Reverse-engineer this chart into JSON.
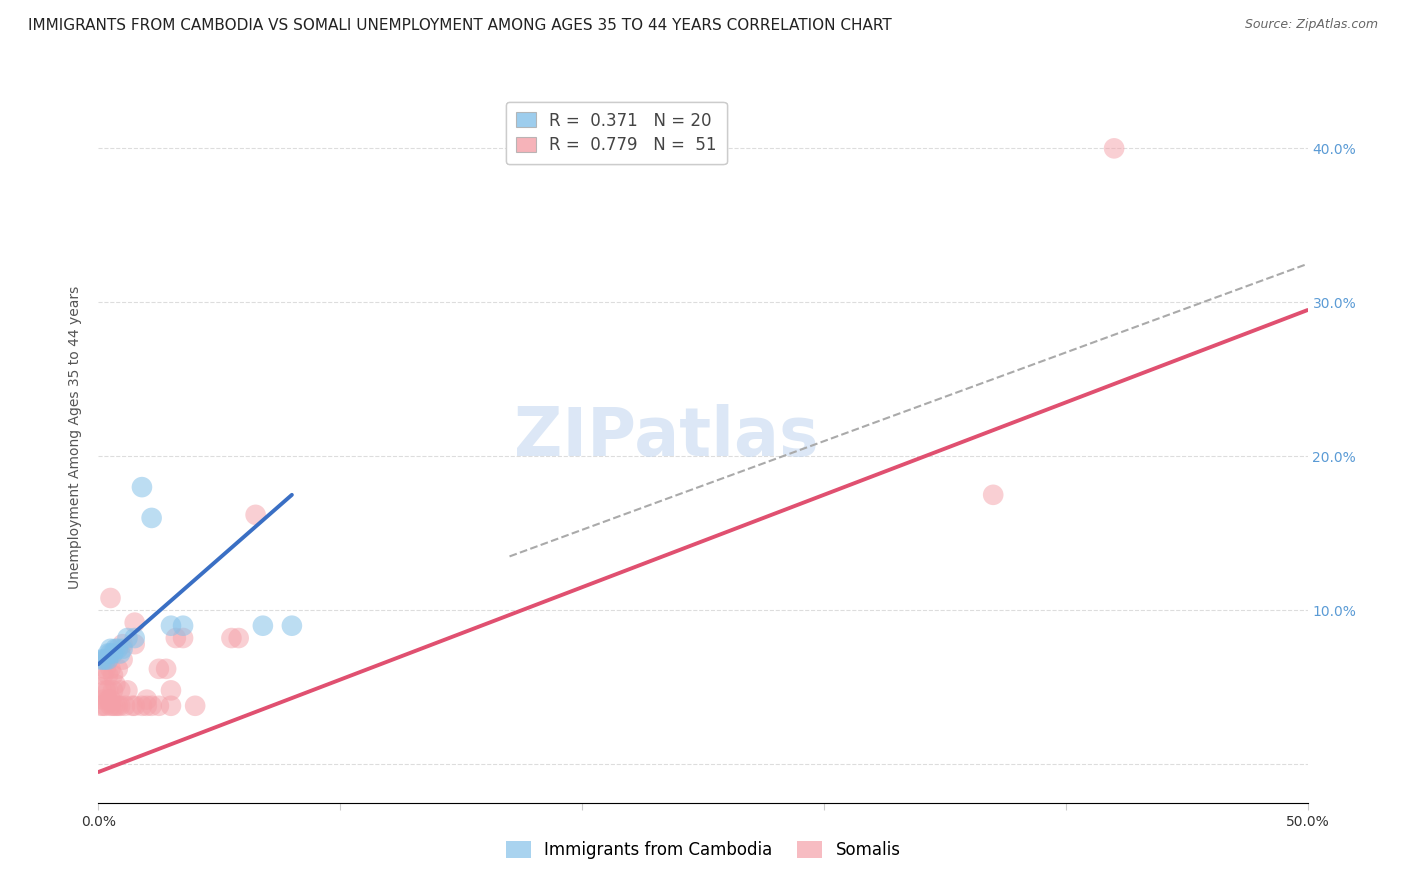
{
  "title": "IMMIGRANTS FROM CAMBODIA VS SOMALI UNEMPLOYMENT AMONG AGES 35 TO 44 YEARS CORRELATION CHART",
  "source": "Source: ZipAtlas.com",
  "ylabel": "Unemployment Among Ages 35 to 44 years",
  "xlim": [
    0.0,
    0.5
  ],
  "ylim": [
    -0.025,
    0.45
  ],
  "cambodia_color": "#85C1E9",
  "somali_color": "#F4A0A8",
  "cambodia_line_color": "#3A6FC4",
  "somali_line_color": "#E05070",
  "dashed_line_color": "#AAAAAA",
  "cambodia_points": [
    [
      0.001,
      0.068
    ],
    [
      0.002,
      0.068
    ],
    [
      0.003,
      0.068
    ],
    [
      0.004,
      0.068
    ],
    [
      0.004,
      0.072
    ],
    [
      0.005,
      0.072
    ],
    [
      0.005,
      0.075
    ],
    [
      0.006,
      0.072
    ],
    [
      0.007,
      0.075
    ],
    [
      0.008,
      0.075
    ],
    [
      0.009,
      0.072
    ],
    [
      0.01,
      0.075
    ],
    [
      0.012,
      0.082
    ],
    [
      0.015,
      0.082
    ],
    [
      0.018,
      0.18
    ],
    [
      0.022,
      0.16
    ],
    [
      0.03,
      0.09
    ],
    [
      0.035,
      0.09
    ],
    [
      0.068,
      0.09
    ],
    [
      0.08,
      0.09
    ]
  ],
  "somali_points": [
    [
      0.001,
      0.038
    ],
    [
      0.001,
      0.05
    ],
    [
      0.002,
      0.038
    ],
    [
      0.002,
      0.042
    ],
    [
      0.002,
      0.058
    ],
    [
      0.003,
      0.038
    ],
    [
      0.003,
      0.048
    ],
    [
      0.003,
      0.062
    ],
    [
      0.003,
      0.068
    ],
    [
      0.004,
      0.042
    ],
    [
      0.004,
      0.048
    ],
    [
      0.004,
      0.058
    ],
    [
      0.004,
      0.068
    ],
    [
      0.005,
      0.038
    ],
    [
      0.005,
      0.042
    ],
    [
      0.005,
      0.062
    ],
    [
      0.005,
      0.108
    ],
    [
      0.006,
      0.038
    ],
    [
      0.006,
      0.048
    ],
    [
      0.006,
      0.058
    ],
    [
      0.007,
      0.038
    ],
    [
      0.007,
      0.052
    ],
    [
      0.008,
      0.038
    ],
    [
      0.008,
      0.062
    ],
    [
      0.009,
      0.038
    ],
    [
      0.009,
      0.048
    ],
    [
      0.01,
      0.068
    ],
    [
      0.01,
      0.078
    ],
    [
      0.011,
      0.038
    ],
    [
      0.012,
      0.048
    ],
    [
      0.014,
      0.038
    ],
    [
      0.015,
      0.038
    ],
    [
      0.015,
      0.078
    ],
    [
      0.015,
      0.092
    ],
    [
      0.018,
      0.038
    ],
    [
      0.02,
      0.038
    ],
    [
      0.02,
      0.042
    ],
    [
      0.022,
      0.038
    ],
    [
      0.025,
      0.038
    ],
    [
      0.025,
      0.062
    ],
    [
      0.028,
      0.062
    ],
    [
      0.03,
      0.038
    ],
    [
      0.03,
      0.048
    ],
    [
      0.032,
      0.082
    ],
    [
      0.035,
      0.082
    ],
    [
      0.04,
      0.038
    ],
    [
      0.055,
      0.082
    ],
    [
      0.058,
      0.082
    ],
    [
      0.065,
      0.162
    ],
    [
      0.37,
      0.175
    ],
    [
      0.42,
      0.4
    ]
  ],
  "grid_color": "#DDDDDD",
  "background_color": "#FFFFFF",
  "title_fontsize": 11,
  "source_fontsize": 9,
  "axis_label_fontsize": 10,
  "tick_fontsize": 10,
  "legend_fontsize": 12,
  "watermark": "ZIPatlas",
  "cambodia_label_r": "R = ",
  "cambodia_label_r_val": "0.371",
  "cambodia_label_n": "N = ",
  "cambodia_label_n_val": "20",
  "somali_label_r": "R = ",
  "somali_label_r_val": "0.779",
  "somali_label_n": "N = ",
  "somali_label_n_val": "51",
  "bottom_label_cambodia": "Immigrants from Cambodia",
  "bottom_label_somali": "Somalis",
  "blue_line_x": [
    0.0,
    0.08
  ],
  "blue_line_y": [
    0.065,
    0.175
  ],
  "pink_line_x": [
    0.0,
    0.5
  ],
  "pink_line_y": [
    -0.005,
    0.295
  ],
  "dash_line_x": [
    0.17,
    0.5
  ],
  "dash_line_y": [
    0.135,
    0.325
  ]
}
